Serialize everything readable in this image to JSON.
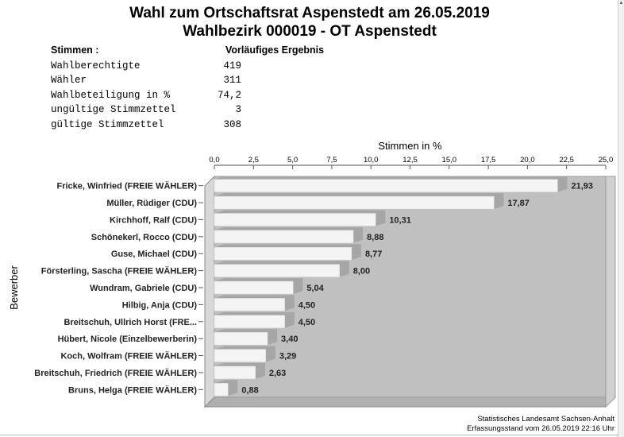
{
  "header": {
    "title_line1": "Wahl zum Ortschaftsrat Aspenstedt am 26.05.2019",
    "title_line2": "Wahlbezirk 000019 - OT Aspenstedt"
  },
  "stats": {
    "heading_left": "Stimmen  :",
    "heading_right": "Vorläufiges Ergebnis",
    "rows": [
      {
        "label": "Wahlberechtigte",
        "value": "419"
      },
      {
        "label": "Wähler",
        "value": "311"
      },
      {
        "label": "Wahlbeteiligung in %",
        "value": "74,2"
      },
      {
        "label": "ungültige Stimmzettel",
        "value": "3"
      },
      {
        "label": "gültige Stimmzettel",
        "value": "308"
      }
    ]
  },
  "chart_data": {
    "type": "bar",
    "orientation": "horizontal",
    "xlabel": "Stimmen in %",
    "ylabel": "Bewerber",
    "xlim": [
      0,
      25
    ],
    "ticks": [
      "0,0",
      "2,5",
      "5,0",
      "7,5",
      "10,0",
      "12,5",
      "15,0",
      "17,5",
      "20,0",
      "22,5",
      "25,0"
    ],
    "categories": [
      "Fricke, Winfried (FREIE WÄHLER)",
      "Müller, Rüdiger (CDU)",
      "Kirchhoff, Ralf (CDU)",
      "Schönekerl, Rocco (CDU)",
      "Guse, Michael (CDU)",
      "Försterling, Sascha (FREIE WÄHLER)",
      "Wundram, Gabriele (CDU)",
      "Hilbig, Anja (CDU)",
      "Breitschuh, Ullrich Horst (FRE...",
      "Hübert, Nicole (Einzelbewerberin)",
      "Koch, Wolfram (FREIE WÄHLER)",
      "Breitschuh, Friedrich (FREIE WÄHLER)",
      "Bruns, Helga (FREIE WÄHLER)"
    ],
    "values": [
      21.93,
      17.87,
      10.31,
      8.88,
      8.77,
      8.0,
      5.04,
      4.5,
      4.5,
      3.4,
      3.29,
      2.63,
      0.88
    ],
    "value_labels": [
      "21,93",
      "17,87",
      "10,31",
      "8,88",
      "8,77",
      "8,00",
      "5,04",
      "4,50",
      "4,50",
      "3,40",
      "3,29",
      "2,63",
      "0,88"
    ],
    "grid": false,
    "colors": {
      "plot_bg": "#c0c0c0",
      "plot_side": "#d8d8d8",
      "bar": "#f4f4f4",
      "bar_shadow": "#a6a6a6"
    }
  },
  "footer": {
    "line1": "Statistisches Landesamt Sachsen-Anhalt",
    "line2": "Erfassungsstand vom 26.05.2019 22:16 Uhr"
  }
}
